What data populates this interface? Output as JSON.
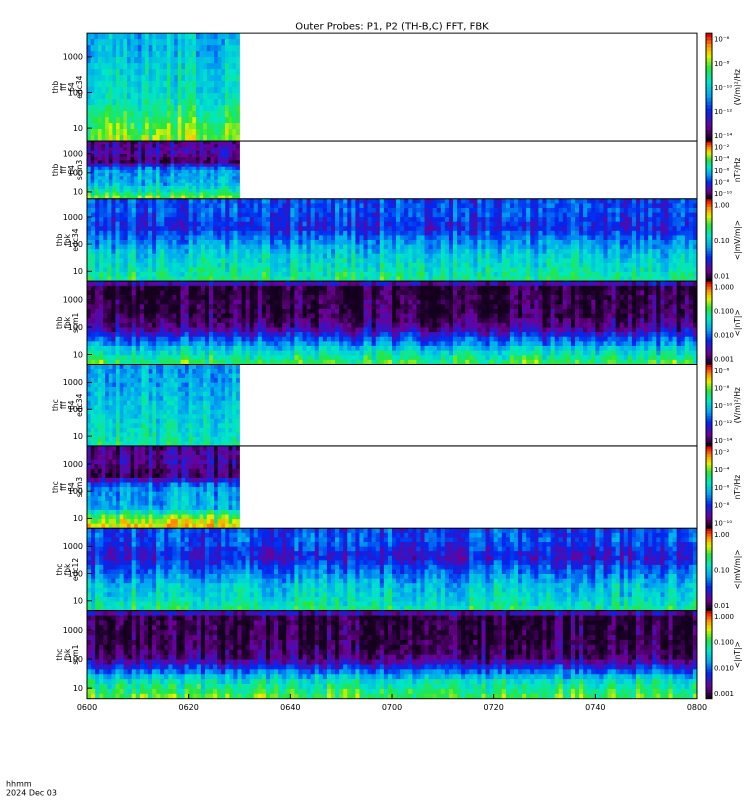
{
  "title": "Outer Probes: P1, P2 (TH-B,C) FFT, FBK",
  "footer": {
    "time_format_label": "hhmm",
    "date_label": "2024 Dec 03"
  },
  "x_axis": {
    "ticks": [
      "0600",
      "0620",
      "0640",
      "0700",
      "0720",
      "0740",
      "0800"
    ],
    "range_minutes": [
      0,
      120
    ]
  },
  "chart_data": [
    {
      "type": "heatmap",
      "ylabel": [
        "thb",
        "fff",
        "64",
        "edc34"
      ],
      "yticks": [
        "1000",
        "100",
        "10"
      ],
      "ylog": true,
      "data_end_minutes": 30,
      "colorbar": {
        "label": "(V/m)²/Hz",
        "ticks": [
          "10⁻⁶",
          "10⁻⁸",
          "10⁻¹⁰",
          "10⁻¹²",
          "10⁻¹⁴"
        ]
      }
    },
    {
      "type": "heatmap",
      "ylabel": [
        "thb",
        "fff",
        "64",
        "scm3"
      ],
      "yticks": [
        "1000",
        "100",
        "10"
      ],
      "ylog": true,
      "data_end_minutes": 30,
      "colorbar": {
        "label": "nT²/Hz",
        "ticks": [
          "10⁻²",
          "10⁻⁴",
          "10⁻⁶",
          "10⁻⁸",
          "10⁻¹⁰"
        ]
      }
    },
    {
      "type": "heatmap",
      "ylabel": [
        "thb",
        "fbk",
        "edc34"
      ],
      "yticks": [
        "1000",
        "100",
        "10"
      ],
      "ylog": true,
      "data_end_minutes": 120,
      "colorbar": {
        "label": "<|mV/m|>",
        "ticks": [
          "1.00",
          "0.10",
          "0.01"
        ]
      }
    },
    {
      "type": "heatmap",
      "ylabel": [
        "thb",
        "fbk",
        "scm1"
      ],
      "yticks": [
        "1000",
        "100",
        "10"
      ],
      "ylog": true,
      "data_end_minutes": 120,
      "colorbar": {
        "label": "<|nT|>",
        "ticks": [
          "1.000",
          "0.100",
          "0.010",
          "0.001"
        ]
      }
    },
    {
      "type": "heatmap",
      "ylabel": [
        "thc",
        "fff",
        "64",
        "edc34"
      ],
      "yticks": [
        "1000",
        "100",
        "10"
      ],
      "ylog": true,
      "data_end_minutes": 30,
      "colorbar": {
        "label": "(V/m)²/Hz",
        "ticks": [
          "10⁻⁶",
          "10⁻⁸",
          "10⁻¹⁰",
          "10⁻¹²",
          "10⁻¹⁴"
        ]
      }
    },
    {
      "type": "heatmap",
      "ylabel": [
        "thc",
        "fff",
        "64",
        "scm3"
      ],
      "yticks": [
        "1000",
        "100",
        "10"
      ],
      "ylog": true,
      "data_end_minutes": 30,
      "colorbar": {
        "label": "nT²/Hz",
        "ticks": [
          "10⁻²",
          "10⁻⁴",
          "10⁻⁶",
          "10⁻⁸",
          "10⁻¹⁰"
        ]
      }
    },
    {
      "type": "heatmap",
      "ylabel": [
        "thc",
        "fbk",
        "edc12"
      ],
      "yticks": [
        "1000",
        "100",
        "10"
      ],
      "ylog": true,
      "data_end_minutes": 120,
      "colorbar": {
        "label": "<|mV/m|>",
        "ticks": [
          "1.00",
          "0.10",
          "0.01"
        ]
      }
    },
    {
      "type": "heatmap",
      "ylabel": [
        "thc",
        "fbk",
        "scm1"
      ],
      "yticks": [
        "1000",
        "100",
        "10"
      ],
      "ylog": true,
      "data_end_minutes": 120,
      "colorbar": {
        "label": "<|nT|>",
        "ticks": [
          "1.000",
          "0.100",
          "0.010",
          "0.001"
        ]
      }
    }
  ]
}
